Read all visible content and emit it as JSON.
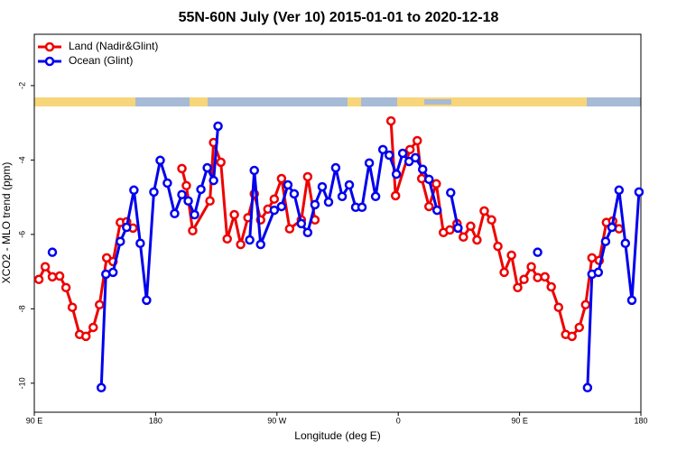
{
  "chart_data": {
    "type": "line",
    "title": "55N-60N July (Ver 10)   2015-01-01 to 2020-12-18",
    "x_label": "Longitude (deg E)",
    "y_label": "XCO2 - MLO trend (ppm)",
    "xlim": [
      90,
      540
    ],
    "xticks": [
      {
        "value": 90,
        "label": "90 E"
      },
      {
        "value": 180,
        "label": "180"
      },
      {
        "value": 270,
        "label": "90 W"
      },
      {
        "value": 360,
        "label": "0"
      },
      {
        "value": 450,
        "label": "90 E"
      },
      {
        "value": 540,
        "label": "180"
      }
    ],
    "ylim": [
      -10.78,
      -0.62
    ],
    "yticks": [
      -10,
      -8,
      -6,
      -4,
      -2
    ],
    "legend": "top-left",
    "series": [
      {
        "name": "Land (Nadir&Glint)",
        "color": "#ee0000",
        "x": [
          93.4,
          98.1,
          103.4,
          108.8,
          113.5,
          118.2,
          123.6,
          128.3,
          133.7,
          138.4,
          143.7,
          148.4,
          153.8,
          158.5,
          163.2,
          null,
          199.5,
          202.8,
          207.5,
          220.3,
          223.0,
          228.4,
          233.1,
          238.4,
          243.1,
          248.5,
          253.2,
          257.9,
          263.3,
          268.0,
          273.4,
          279.4,
          288.1,
          292.8,
          298.2,
          null,
          354.6,
          358.0,
          368.7,
          374.1,
          377.4,
          382.8,
          388.2,
          393.5,
          398.3,
          403.6,
          408.3,
          413.7,
          418.4,
          423.8,
          429.2,
          433.9,
          438.6,
          444.0,
          448.6,
          453.3,
          458.7,
          463.4,
          468.8,
          473.5,
          478.9,
          484.2,
          488.9,
          494.3,
          499.0,
          503.7,
          509.1,
          514.4,
          519.1,
          523.8
        ],
        "values": [
          -7.21,
          -6.87,
          -7.14,
          -7.12,
          -7.43,
          -7.96,
          -8.69,
          -8.74,
          -8.5,
          -7.89,
          -6.63,
          -6.73,
          -5.68,
          -5.66,
          -5.83,
          null,
          -4.23,
          -4.69,
          -5.9,
          -5.1,
          -3.53,
          -4.06,
          -6.12,
          -5.47,
          -6.27,
          -5.55,
          -4.91,
          -5.61,
          -5.32,
          -5.05,
          -4.5,
          -5.85,
          -5.61,
          -4.45,
          -5.61,
          null,
          -2.95,
          -4.96,
          -3.72,
          -3.48,
          -4.5,
          -5.25,
          -4.64,
          -5.95,
          -5.88,
          -5.71,
          -6.07,
          -5.78,
          -6.15,
          -5.37,
          -5.61,
          -6.32,
          -7.02,
          -6.56,
          -7.43,
          -7.21,
          -6.87,
          -7.16,
          -7.14,
          -7.41,
          -7.96,
          -8.69,
          -8.74,
          -8.5,
          -7.89,
          -6.63,
          -6.7,
          -5.68,
          -5.64,
          -5.85
        ]
      },
      {
        "name": "Ocean (Glint)",
        "color": "#0000ee",
        "x": [
          103.4,
          null,
          139.7,
          143.1,
          148.4,
          153.8,
          158.5,
          163.9,
          168.6,
          173.3,
          178.7,
          183.4,
          188.7,
          194.1,
          199.5,
          204.2,
          208.9,
          213.6,
          218.3,
          223.0,
          226.3,
          null,
          249.8,
          253.2,
          257.9,
          268.0,
          273.4,
          278.1,
          282.8,
          288.1,
          292.8,
          298.2,
          303.6,
          308.3,
          313.6,
          318.4,
          323.7,
          328.4,
          333.1,
          338.5,
          343.2,
          348.6,
          353.3,
          358.6,
          363.3,
          368.0,
          372.7,
          378.1,
          382.8,
          388.8,
          null,
          398.9,
          404.3,
          null,
          463.4,
          null,
          500.4,
          503.7,
          508.4,
          513.8,
          518.5,
          523.8,
          528.5,
          533.3,
          538.6
        ],
        "values": [
          -6.48,
          null,
          -10.12,
          -7.07,
          -7.02,
          -6.19,
          -5.81,
          -4.81,
          -6.24,
          -7.77,
          -4.86,
          -4.01,
          -4.62,
          -5.44,
          -4.93,
          -5.1,
          -5.47,
          -4.79,
          -4.21,
          -4.55,
          -3.09,
          null,
          -6.15,
          -4.28,
          -6.27,
          -5.35,
          -5.25,
          -4.67,
          -4.91,
          -5.71,
          -5.95,
          -5.2,
          -4.72,
          -5.13,
          -4.21,
          -4.98,
          -4.67,
          -5.27,
          -5.27,
          -4.08,
          -4.98,
          -3.72,
          -3.87,
          -4.38,
          -3.82,
          -4.04,
          -3.94,
          -4.25,
          -4.52,
          -5.35,
          null,
          -4.88,
          -5.83,
          null,
          -6.48,
          null,
          -10.12,
          -7.07,
          -7.02,
          -6.19,
          -5.81,
          -4.81,
          -6.24,
          -7.77,
          -4.86
        ]
      }
    ]
  }
}
